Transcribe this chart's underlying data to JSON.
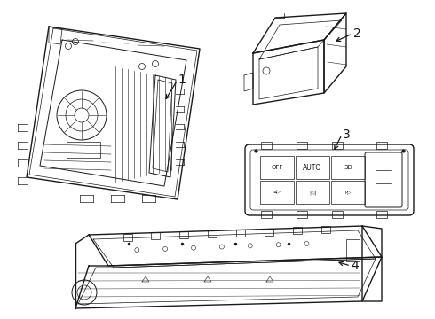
{
  "bg_color": "#ffffff",
  "line_color": "#1a1a1a",
  "figsize": [
    4.9,
    3.6
  ],
  "dpi": 100,
  "label1": "1",
  "label2": "2",
  "label3": "3",
  "label4": "4"
}
